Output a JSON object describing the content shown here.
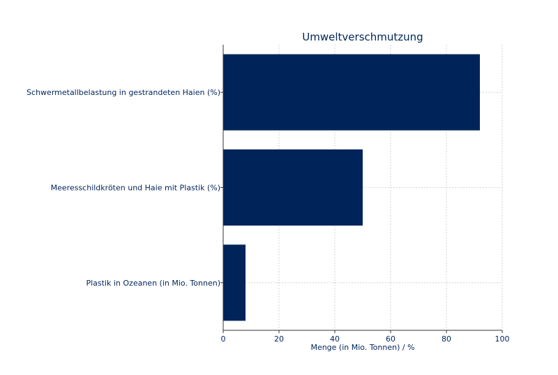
{
  "colors": {
    "bar": "#00245a",
    "text": "#00245a",
    "grid": "#c8c8c8",
    "axis": "#333333"
  },
  "chart_data": {
    "type": "bar",
    "orientation": "horizontal",
    "title": "Umweltverschmutzung",
    "xlabel": "Menge (in Mio. Tonnen) / %",
    "ylabel": "",
    "categories": [
      "Schwermetallbelastung in gestrandeten Haien (%)",
      "Meeresschildkröten und Haie mit Plastik (%)",
      "Plastik in Ozeanen (in Mio. Tonnen)"
    ],
    "values": [
      92,
      50,
      8
    ],
    "xlim": [
      0,
      100
    ],
    "xticks": [
      0,
      20,
      40,
      60,
      80,
      100
    ],
    "grid": true
  }
}
